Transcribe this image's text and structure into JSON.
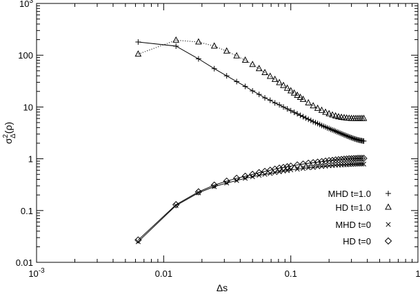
{
  "chart_data": {
    "type": "line",
    "xlabel": "Δs",
    "ylabel_base": "σ",
    "ylabel_sup": "2",
    "ylabel_sub": "Δ",
    "ylabel_rest": "(ρ)",
    "xscale": "log",
    "yscale": "log",
    "xlim": [
      0.001,
      1
    ],
    "ylim": [
      0.01,
      1000
    ],
    "grid": false,
    "legend_position": "bottom-right",
    "x_ticks": [
      {
        "value": 0.001,
        "base": "10",
        "exp": "-3"
      },
      {
        "value": 0.01,
        "label": "0.01"
      },
      {
        "value": 0.1,
        "label": "0.1"
      },
      {
        "value": 1,
        "label": "1"
      }
    ],
    "y_ticks": [
      {
        "value": 0.01,
        "label": "0.01"
      },
      {
        "value": 0.1,
        "label": "0.1"
      },
      {
        "value": 1,
        "label": "1"
      },
      {
        "value": 10,
        "label": "10"
      },
      {
        "value": 100,
        "label": "100"
      },
      {
        "value": 1000,
        "base": "10",
        "exp": "3"
      }
    ],
    "series": [
      {
        "name": "MHD t=1.0",
        "marker": "plus",
        "line": "solid",
        "points": [
          [
            0.0063,
            180
          ],
          [
            0.0125,
            150
          ],
          [
            0.0188,
            85
          ],
          [
            0.025,
            55
          ],
          [
            0.0313,
            40
          ],
          [
            0.0375,
            31
          ],
          [
            0.0438,
            25
          ],
          [
            0.05,
            20.5
          ],
          [
            0.0563,
            17.5
          ],
          [
            0.0625,
            15
          ],
          [
            0.0688,
            13.5
          ],
          [
            0.075,
            12
          ],
          [
            0.0813,
            11
          ],
          [
            0.0875,
            10
          ],
          [
            0.0938,
            9.2
          ],
          [
            0.1,
            8.5
          ],
          [
            0.1063,
            7.9
          ],
          [
            0.1125,
            7.4
          ],
          [
            0.1188,
            6.9
          ],
          [
            0.125,
            6.5
          ],
          [
            0.1313,
            6.1
          ],
          [
            0.1375,
            5.8
          ],
          [
            0.1438,
            5.5
          ],
          [
            0.15,
            5.2
          ],
          [
            0.1563,
            5
          ],
          [
            0.1625,
            4.8
          ],
          [
            0.1688,
            4.6
          ],
          [
            0.175,
            4.4
          ],
          [
            0.1813,
            4.25
          ],
          [
            0.1875,
            4.1
          ],
          [
            0.1938,
            3.95
          ],
          [
            0.2,
            3.85
          ],
          [
            0.2063,
            3.7
          ],
          [
            0.2125,
            3.6
          ],
          [
            0.2188,
            3.5
          ],
          [
            0.225,
            3.4
          ],
          [
            0.2313,
            3.3
          ],
          [
            0.2375,
            3.22
          ],
          [
            0.2438,
            3.13
          ],
          [
            0.25,
            3.05
          ],
          [
            0.2563,
            2.98
          ],
          [
            0.2625,
            2.9
          ],
          [
            0.2688,
            2.84
          ],
          [
            0.275,
            2.77
          ],
          [
            0.2813,
            2.71
          ],
          [
            0.2875,
            2.65
          ],
          [
            0.2938,
            2.6
          ],
          [
            0.3,
            2.55
          ],
          [
            0.3063,
            2.5
          ],
          [
            0.3125,
            2.46
          ],
          [
            0.3188,
            2.42
          ],
          [
            0.325,
            2.38
          ],
          [
            0.3313,
            2.35
          ],
          [
            0.3375,
            2.32
          ],
          [
            0.3438,
            2.29
          ],
          [
            0.35,
            2.27
          ],
          [
            0.3563,
            2.25
          ],
          [
            0.3625,
            2.23
          ],
          [
            0.3688,
            2.21
          ],
          [
            0.375,
            2.2
          ]
        ]
      },
      {
        "name": "HD t=1.0",
        "marker": "triangle",
        "line": "dotted",
        "points": [
          [
            0.0063,
            105
          ],
          [
            0.0125,
            195
          ],
          [
            0.0188,
            180
          ],
          [
            0.025,
            150
          ],
          [
            0.0313,
            120
          ],
          [
            0.0375,
            97
          ],
          [
            0.0438,
            80
          ],
          [
            0.05,
            66
          ],
          [
            0.0563,
            55
          ],
          [
            0.0625,
            46
          ],
          [
            0.0688,
            39
          ],
          [
            0.075,
            34
          ],
          [
            0.0813,
            29.5
          ],
          [
            0.0875,
            26
          ],
          [
            0.0938,
            23
          ],
          [
            0.1,
            20.5
          ],
          [
            0.1063,
            18.5
          ],
          [
            0.1125,
            16.8
          ],
          [
            0.1188,
            15.3
          ],
          [
            0.125,
            14
          ],
          [
            0.1375,
            12
          ],
          [
            0.15,
            10.5
          ],
          [
            0.1625,
            9.4
          ],
          [
            0.175,
            8.6
          ],
          [
            0.1875,
            7.9
          ],
          [
            0.2,
            7.4
          ],
          [
            0.2125,
            7
          ],
          [
            0.225,
            6.7
          ],
          [
            0.2375,
            6.45
          ],
          [
            0.25,
            6.3
          ],
          [
            0.2625,
            6.2
          ],
          [
            0.275,
            6.1
          ],
          [
            0.2875,
            6.05
          ],
          [
            0.3,
            6
          ],
          [
            0.3125,
            6
          ],
          [
            0.325,
            6
          ],
          [
            0.3375,
            6
          ],
          [
            0.35,
            6
          ],
          [
            0.3625,
            6
          ],
          [
            0.375,
            6
          ]
        ]
      },
      {
        "name": "MHD t=0",
        "marker": "cross",
        "line": "solid",
        "points": [
          [
            0.0063,
            0.025
          ],
          [
            0.0125,
            0.125
          ],
          [
            0.0188,
            0.22
          ],
          [
            0.025,
            0.29
          ],
          [
            0.0313,
            0.34
          ],
          [
            0.0375,
            0.38
          ],
          [
            0.0438,
            0.42
          ],
          [
            0.05,
            0.45
          ],
          [
            0.0563,
            0.48
          ],
          [
            0.0625,
            0.5
          ],
          [
            0.0688,
            0.52
          ],
          [
            0.075,
            0.54
          ],
          [
            0.0813,
            0.56
          ],
          [
            0.0875,
            0.58
          ],
          [
            0.0938,
            0.59
          ],
          [
            0.1,
            0.61
          ],
          [
            0.1125,
            0.63
          ],
          [
            0.125,
            0.65
          ],
          [
            0.1375,
            0.67
          ],
          [
            0.15,
            0.68
          ],
          [
            0.1625,
            0.7
          ],
          [
            0.175,
            0.71
          ],
          [
            0.1875,
            0.72
          ],
          [
            0.2,
            0.73
          ],
          [
            0.2125,
            0.74
          ],
          [
            0.225,
            0.75
          ],
          [
            0.2375,
            0.755
          ],
          [
            0.25,
            0.76
          ],
          [
            0.2625,
            0.765
          ],
          [
            0.275,
            0.77
          ],
          [
            0.2875,
            0.775
          ],
          [
            0.3,
            0.78
          ],
          [
            0.3125,
            0.782
          ],
          [
            0.325,
            0.785
          ],
          [
            0.3375,
            0.787
          ],
          [
            0.35,
            0.79
          ],
          [
            0.3625,
            0.79
          ],
          [
            0.375,
            0.79
          ]
        ]
      },
      {
        "name": "HD t=0",
        "marker": "diamond",
        "line": "solid",
        "points": [
          [
            0.0063,
            0.027
          ],
          [
            0.0125,
            0.13
          ],
          [
            0.0188,
            0.23
          ],
          [
            0.025,
            0.31
          ],
          [
            0.0313,
            0.37
          ],
          [
            0.0375,
            0.42
          ],
          [
            0.0438,
            0.46
          ],
          [
            0.05,
            0.5
          ],
          [
            0.0563,
            0.54
          ],
          [
            0.0625,
            0.57
          ],
          [
            0.0688,
            0.6
          ],
          [
            0.075,
            0.63
          ],
          [
            0.0813,
            0.66
          ],
          [
            0.0875,
            0.68
          ],
          [
            0.0938,
            0.7
          ],
          [
            0.1,
            0.72
          ],
          [
            0.1125,
            0.76
          ],
          [
            0.125,
            0.79
          ],
          [
            0.1375,
            0.82
          ],
          [
            0.15,
            0.84
          ],
          [
            0.1625,
            0.86
          ],
          [
            0.175,
            0.88
          ],
          [
            0.1875,
            0.9
          ],
          [
            0.2,
            0.92
          ],
          [
            0.2125,
            0.93
          ],
          [
            0.225,
            0.95
          ],
          [
            0.2375,
            0.96
          ],
          [
            0.25,
            0.97
          ],
          [
            0.2625,
            0.98
          ],
          [
            0.275,
            0.99
          ],
          [
            0.2875,
            1
          ],
          [
            0.3,
            1
          ],
          [
            0.3125,
            1.01
          ],
          [
            0.325,
            1.01
          ],
          [
            0.3375,
            1.02
          ],
          [
            0.35,
            1.02
          ],
          [
            0.3625,
            1.02
          ],
          [
            0.375,
            1.02
          ]
        ]
      }
    ],
    "legend": [
      {
        "label": "MHD t=1.0",
        "marker": "plus"
      },
      {
        "label": "HD t=1.0",
        "marker": "triangle"
      },
      {
        "label": "MHD t=0",
        "marker": "cross"
      },
      {
        "label": "HD t=0",
        "marker": "diamond"
      }
    ]
  }
}
